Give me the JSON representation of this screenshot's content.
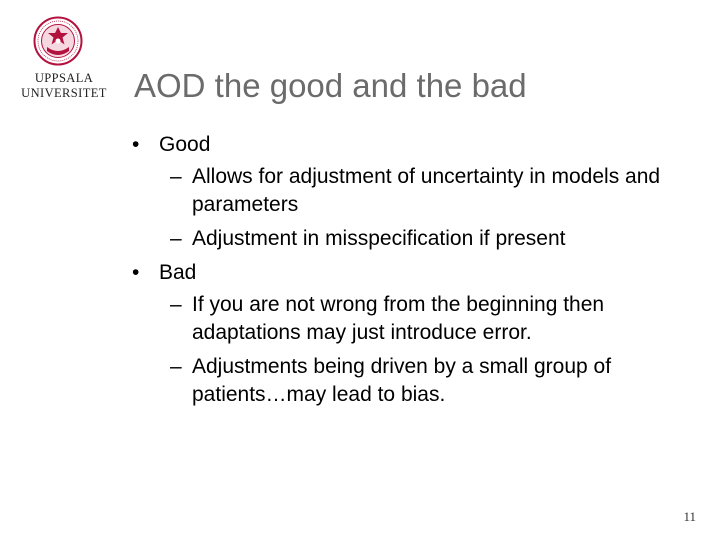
{
  "logo": {
    "line1": "UPPSALA",
    "line2": "UNIVERSITET",
    "seal_color": "#b3123e"
  },
  "slide": {
    "title": "AOD the good and the bad",
    "page_number": "11"
  },
  "bullets": [
    {
      "mark": "•",
      "text": "Good",
      "subs": [
        {
          "mark": "–",
          "text": "Allows for adjustment of uncertainty in models and parameters"
        },
        {
          "mark": "–",
          "text": "Adjustment in misspecification if present"
        }
      ]
    },
    {
      "mark": "•",
      "text": "Bad",
      "subs": [
        {
          "mark": "–",
          "text": "If you are not wrong from the beginning then adaptations may just introduce error."
        },
        {
          "mark": "–",
          "text": "Adjustments being driven by a small group of patients…may lead to bias."
        }
      ]
    }
  ]
}
